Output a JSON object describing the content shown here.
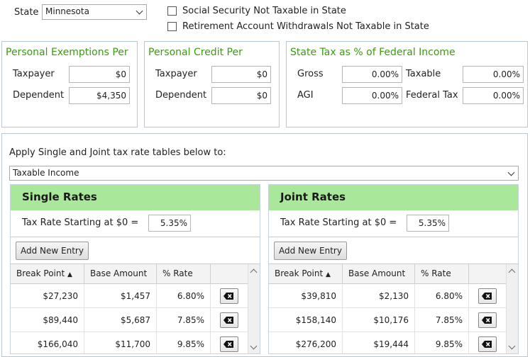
{
  "state": {
    "label": "State",
    "value": "Minnesota"
  },
  "checkboxes": [
    {
      "label": "Social Security Not Taxable in State",
      "checked": false
    },
    {
      "label": "Retirement Account Withdrawals Not Taxable in State",
      "checked": false
    }
  ],
  "personal_exemptions": {
    "title": "Personal Exemptions Per",
    "taxpayer_label": "Taxpayer",
    "taxpayer_value": "$0",
    "dependent_label": "Dependent",
    "dependent_value": "$4,350"
  },
  "personal_credit": {
    "title": "Personal Credit Per",
    "taxpayer_label": "Taxpayer",
    "taxpayer_value": "$0",
    "dependent_label": "Dependent",
    "dependent_value": "$0"
  },
  "state_tax_pct": {
    "title": "State Tax as % of Federal Income",
    "gross_label": "Gross",
    "gross_value": "0.00%",
    "taxable_label": "Taxable",
    "taxable_value": "0.00%",
    "agi_label": "AGI",
    "agi_value": "0.00%",
    "federal_label": "Federal Tax",
    "federal_value": "0.00%"
  },
  "apply": {
    "label": "Apply Single and Joint tax rate tables below to:",
    "value": "Taxable Income"
  },
  "single": {
    "title": "Single Rates",
    "start_label": "Tax Rate Starting at $0 =",
    "start_value": "5.35%",
    "add_label": "Add New Entry",
    "columns": [
      "Break Point",
      "Base Amount",
      "% Rate"
    ],
    "rows": [
      {
        "break": "$27,230",
        "base": "$1,457",
        "rate": "6.80%"
      },
      {
        "break": "$89,440",
        "base": "$5,687",
        "rate": "7.85%"
      },
      {
        "break": "$166,040",
        "base": "$11,700",
        "rate": "9.85%"
      }
    ]
  },
  "joint": {
    "title": "Joint Rates",
    "start_label": "Tax Rate Starting at $0 =",
    "start_value": "5.35%",
    "add_label": "Add New Entry",
    "columns": [
      "Break Point",
      "Base Amount",
      "% Rate"
    ],
    "rows": [
      {
        "break": "$39,810",
        "base": "$2,130",
        "rate": "6.80%"
      },
      {
        "break": "$158,140",
        "base": "$10,176",
        "rate": "7.85%"
      },
      {
        "break": "$276,200",
        "base": "$19,444",
        "rate": "9.85%"
      }
    ]
  },
  "icons": {
    "delete": "backspace-delete-icon",
    "sort": "sort-ascending-icon"
  }
}
